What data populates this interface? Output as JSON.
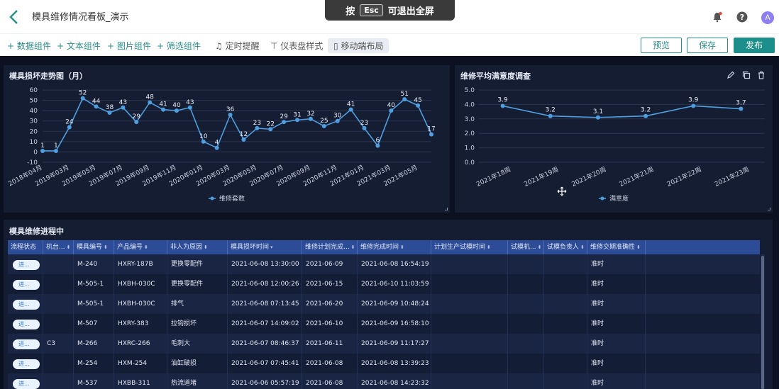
{
  "header": {
    "dashboard_title": "模具维修情况看板_演示",
    "esc_prefix": "按",
    "esc_key": "Esc",
    "esc_suffix": "可退出全屏",
    "avatar_letter": "A"
  },
  "toolbar": {
    "items": [
      "+ 数据组件",
      "+ 文本组件",
      "+ 图片组件",
      "+ 筛选组件"
    ],
    "timer": "定时提醒",
    "style": "仪表盘样式",
    "mobile": "移动端布局",
    "preview": "预览",
    "save": "保存",
    "publish": "发布"
  },
  "colors": {
    "accent": "#1d8f8a",
    "line": "#4e9ee0",
    "table_header": "#2c4c97",
    "pill": "#e9f2ff"
  },
  "chart_trend": {
    "title": "模具损坏走势图（月）",
    "legend": "维修套数"
  },
  "chart_satisfaction": {
    "title": "维修平均满意度调查",
    "legend": "满意度"
  },
  "chart_data": [
    {
      "type": "line",
      "title": "模具损坏走势图（月）",
      "ylim": [
        -10,
        60
      ],
      "yticks": [
        -10,
        0,
        10,
        20,
        30,
        40,
        50,
        60
      ],
      "x_tick_labels": [
        "2018年04月",
        "2019年03月",
        "2019年05月",
        "2019年07月",
        "2019年09月",
        "2019年11月",
        "2020年01月",
        "2020年03月",
        "2020年05月",
        "2020年07月",
        "2020年09月",
        "2020年11月",
        "2021年01月",
        "2021年03月",
        "2021年05月"
      ],
      "series": [
        {
          "name": "维修套数",
          "values": [
            1,
            1,
            24,
            52,
            44,
            38,
            43,
            29,
            48,
            41,
            40,
            43,
            10,
            4,
            36,
            12,
            23,
            22,
            29,
            31,
            32,
            25,
            30,
            41,
            23,
            6,
            40,
            51,
            45,
            17
          ]
        }
      ],
      "grid": true,
      "legend_position": "bottom"
    },
    {
      "type": "line",
      "title": "维修平均满意度调查",
      "ylim": [
        0,
        5
      ],
      "yticks": [
        "0.0",
        "1.0",
        "2.0",
        "3.0",
        "4.0",
        "5.0"
      ],
      "categories": [
        "2021年18周",
        "2021年19周",
        "2021年20周",
        "2021年21周",
        "2021年22周",
        "2021年23周"
      ],
      "series": [
        {
          "name": "满意度",
          "values": [
            3.9,
            3.2,
            3.1,
            3.2,
            3.9,
            3.7
          ]
        }
      ],
      "grid": true,
      "legend_position": "bottom"
    }
  ],
  "table": {
    "title": "模具维修进程中",
    "columns": [
      "流程状态",
      "机台...",
      "模具编号",
      "产品编号",
      "非人为原因",
      "模具损坏时间",
      "维修计划完成...",
      "维修完成时间",
      "计划生产试模时间",
      "试模机...",
      "试模负责人",
      "维修交期准确性"
    ],
    "rows": [
      [
        "进...",
        "",
        "M-240",
        "HXRY-187B",
        "更换零配件",
        "2021-06-08 13:30:00",
        "2021-06-09",
        "2021-06-08 16:54:19",
        "",
        "",
        "",
        "准时"
      ],
      [
        "进...",
        "",
        "M-505-1",
        "HXBH-030C",
        "更换零配件",
        "2021-06-08 12:00:26",
        "2021-06-15",
        "2021-06-10 11:03:59",
        "",
        "",
        "",
        "准时"
      ],
      [
        "进...",
        "",
        "M-505-1",
        "HXBH-030C",
        "排气",
        "2021-06-08 07:13:45",
        "2021-06-20",
        "2021-06-09 10:48:24",
        "",
        "",
        "",
        "准时"
      ],
      [
        "进...",
        "",
        "M-507",
        "HXRY-383",
        "拉钩损坏",
        "2021-06-07 14:09:02",
        "2021-06-10",
        "2021-06-09 16:58:10",
        "",
        "",
        "",
        "准时"
      ],
      [
        "进...",
        "C3",
        "M-266",
        "HXRC-266",
        "毛刺大",
        "2021-06-07 08:46:37",
        "2021-06-11",
        "2021-06-09 11:17:27",
        "",
        "",
        "",
        "准时"
      ],
      [
        "进...",
        "",
        "M-254",
        "HXM-254",
        "油缸破损",
        "2021-06-07 07:45:41",
        "2021-06-08",
        "2021-06-08 13:39:23",
        "",
        "",
        "",
        "准时"
      ],
      [
        "进...",
        "",
        "M-537",
        "HXBB-311",
        "热流道堵",
        "2021-06-06 05:57:19",
        "2021-06-08",
        "2021-06-08 14:23:32",
        "",
        "",
        "",
        "准时"
      ]
    ]
  }
}
